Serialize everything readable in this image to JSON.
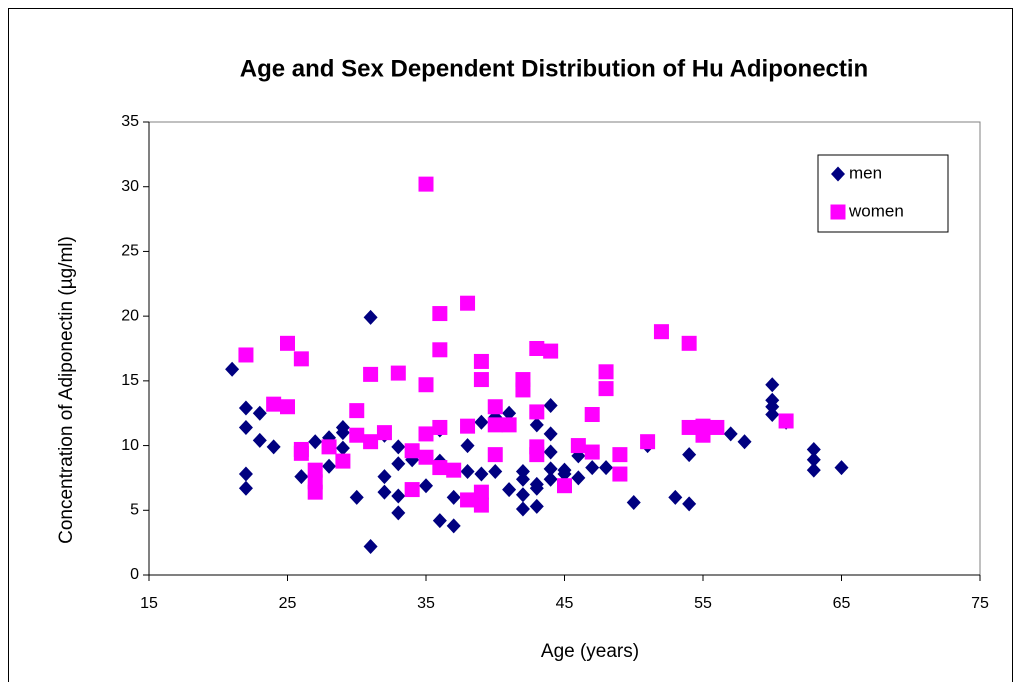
{
  "chart_data": {
    "type": "scatter",
    "title": "Age and Sex Dependent Distribution of Hu Adiponectin",
    "x_label": "Age (years)",
    "y_label": "Concentration of Adiponectin (µg/ml)",
    "xlim": [
      15,
      75
    ],
    "xticks": [
      15,
      25,
      35,
      45,
      55,
      65,
      75
    ],
    "ylim": [
      0,
      35
    ],
    "yticks": [
      0,
      5,
      10,
      15,
      20,
      25,
      30,
      35
    ],
    "grid": false,
    "legend": "upper right",
    "series": [
      {
        "name": "men",
        "color": "#000080",
        "marker": "diamond",
        "x": [
          21,
          22,
          22,
          22,
          22,
          23,
          23,
          24,
          26,
          27,
          28,
          28,
          29,
          29,
          29,
          30,
          31,
          31,
          32,
          32,
          32,
          33,
          33,
          33,
          33,
          34,
          35,
          36,
          36,
          36,
          37,
          37,
          38,
          38,
          39,
          39,
          40,
          40,
          41,
          41,
          42,
          42,
          42,
          42,
          43,
          43,
          43,
          43,
          43,
          44,
          44,
          44,
          44,
          44,
          45,
          45,
          46,
          46,
          47,
          48,
          50,
          51,
          53,
          54,
          54,
          55,
          57,
          58,
          60,
          60,
          60,
          60,
          61,
          63,
          63,
          63,
          65
        ],
        "values": [
          15.9,
          12.9,
          11.4,
          7.8,
          6.7,
          12.5,
          10.4,
          9.9,
          7.6,
          10.3,
          10.6,
          8.4,
          11.4,
          11.0,
          9.8,
          6.0,
          19.9,
          2.2,
          10.8,
          7.6,
          6.4,
          9.9,
          8.6,
          6.1,
          4.8,
          8.9,
          6.9,
          11.2,
          8.8,
          4.2,
          6.0,
          3.8,
          10.0,
          8.0,
          11.8,
          7.8,
          12.2,
          8.0,
          12.5,
          6.6,
          8.0,
          7.4,
          6.2,
          5.1,
          11.6,
          9.5,
          7.0,
          6.7,
          5.3,
          13.1,
          10.9,
          9.5,
          8.2,
          7.4,
          8.1,
          7.8,
          9.2,
          7.5,
          8.3,
          8.3,
          5.6,
          10.0,
          6.0,
          9.3,
          5.5,
          11.3,
          10.9,
          10.3,
          14.7,
          13.5,
          13.0,
          12.4,
          11.8,
          9.7,
          8.9,
          8.1,
          8.3
        ]
      },
      {
        "name": "women",
        "color": "#ff00ff",
        "marker": "square",
        "x": [
          22,
          24,
          25,
          25,
          26,
          26,
          26,
          27,
          27,
          27,
          28,
          29,
          30,
          30,
          31,
          31,
          32,
          33,
          34,
          34,
          35,
          35,
          35,
          35,
          36,
          36,
          36,
          36,
          37,
          38,
          38,
          38,
          39,
          39,
          39,
          39,
          40,
          40,
          40,
          41,
          42,
          42,
          43,
          43,
          43,
          43,
          44,
          45,
          46,
          47,
          47,
          48,
          48,
          49,
          49,
          51,
          52,
          54,
          54,
          55,
          55,
          56,
          61
        ],
        "values": [
          17.0,
          13.2,
          17.9,
          13.0,
          16.7,
          9.7,
          9.4,
          8.1,
          7.2,
          6.4,
          9.9,
          8.8,
          12.7,
          10.8,
          15.5,
          10.3,
          11.0,
          15.6,
          9.6,
          6.6,
          30.2,
          14.7,
          10.9,
          9.1,
          20.2,
          17.4,
          11.4,
          8.3,
          8.1,
          21.0,
          11.5,
          5.8,
          16.5,
          15.1,
          6.4,
          5.4,
          13.0,
          11.6,
          9.3,
          11.6,
          15.1,
          14.3,
          17.5,
          12.6,
          9.9,
          9.3,
          17.3,
          6.9,
          10.0,
          12.4,
          9.5,
          15.7,
          14.4,
          9.3,
          7.8,
          10.3,
          18.8,
          17.9,
          11.4,
          11.5,
          10.8,
          11.4,
          11.9
        ]
      }
    ]
  }
}
